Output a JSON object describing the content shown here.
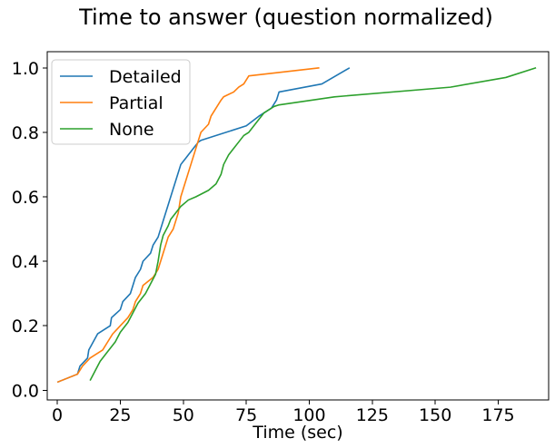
{
  "chart_data": {
    "type": "line",
    "title": "Time to answer (question normalized)",
    "xlabel": "Time (sec)",
    "ylabel": "",
    "xlim": [
      -4,
      195
    ],
    "ylim": [
      -0.03,
      1.05
    ],
    "xticks": [
      0,
      25,
      50,
      75,
      100,
      125,
      150,
      175
    ],
    "yticks": [
      0.0,
      0.2,
      0.4,
      0.6,
      0.8,
      1.0
    ],
    "xtick_labels": [
      "0",
      "25",
      "50",
      "75",
      "100",
      "125",
      "150",
      "175"
    ],
    "ytick_labels": [
      "0.0",
      "0.2",
      "0.4",
      "0.6",
      "0.8",
      "1.0"
    ],
    "grid": false,
    "legend_position": "top-left",
    "series": [
      {
        "name": "Detailed",
        "color": "#1f77b4",
        "x": [
          0,
          8,
          9,
          12,
          12.5,
          16,
          21,
          21.5,
          25,
          26,
          29,
          30,
          31,
          33,
          34,
          37,
          38,
          40,
          41,
          42,
          43,
          44,
          45,
          46,
          47,
          48,
          49,
          50,
          51,
          52,
          53,
          54,
          55,
          56,
          57,
          75,
          80,
          85,
          87,
          88,
          105,
          116
        ],
        "y": [
          0.025,
          0.05,
          0.075,
          0.1,
          0.125,
          0.175,
          0.2,
          0.225,
          0.25,
          0.275,
          0.3,
          0.325,
          0.35,
          0.375,
          0.4,
          0.425,
          0.45,
          0.475,
          0.5,
          0.525,
          0.55,
          0.575,
          0.6,
          0.625,
          0.65,
          0.675,
          0.7,
          0.71,
          0.72,
          0.73,
          0.74,
          0.75,
          0.76,
          0.77,
          0.775,
          0.82,
          0.85,
          0.875,
          0.9,
          0.925,
          0.95,
          1.0
        ]
      },
      {
        "name": "Partial",
        "color": "#ff7f0e",
        "x": [
          0,
          8,
          10,
          13,
          18,
          20,
          22,
          25,
          28,
          30,
          31,
          33,
          34,
          38,
          40,
          42,
          43,
          44,
          46,
          48,
          49,
          51,
          53,
          55,
          57,
          60,
          61,
          63,
          65,
          66,
          70,
          72,
          74,
          76,
          104
        ],
        "y": [
          0.025,
          0.05,
          0.075,
          0.1,
          0.125,
          0.15,
          0.175,
          0.2,
          0.225,
          0.25,
          0.275,
          0.3,
          0.325,
          0.35,
          0.375,
          0.425,
          0.45,
          0.475,
          0.5,
          0.55,
          0.6,
          0.65,
          0.7,
          0.75,
          0.8,
          0.825,
          0.85,
          0.875,
          0.9,
          0.91,
          0.925,
          0.94,
          0.95,
          0.975,
          1.0
        ]
      },
      {
        "name": "None",
        "color": "#2ca02c",
        "x": [
          13,
          15,
          17,
          20,
          23,
          25,
          28,
          30,
          32,
          35,
          37,
          39,
          40,
          41,
          42,
          44,
          45,
          47,
          49,
          52,
          55,
          60,
          63,
          65,
          66,
          68,
          70,
          72,
          74,
          76,
          78,
          80,
          82,
          84,
          86,
          88,
          110,
          156,
          178,
          190
        ],
        "y": [
          0.03,
          0.06,
          0.09,
          0.12,
          0.15,
          0.18,
          0.21,
          0.24,
          0.27,
          0.3,
          0.33,
          0.36,
          0.4,
          0.45,
          0.48,
          0.51,
          0.53,
          0.55,
          0.57,
          0.59,
          0.6,
          0.62,
          0.64,
          0.67,
          0.7,
          0.73,
          0.75,
          0.77,
          0.79,
          0.8,
          0.82,
          0.84,
          0.86,
          0.87,
          0.88,
          0.885,
          0.91,
          0.94,
          0.97,
          1.0
        ]
      }
    ]
  }
}
